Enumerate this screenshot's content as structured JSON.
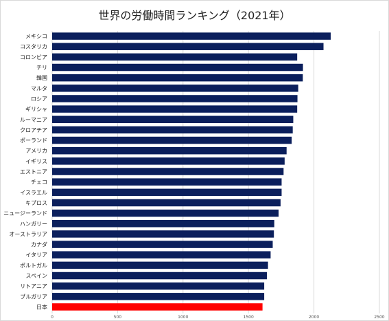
{
  "chart_data": {
    "type": "bar",
    "orientation": "horizontal",
    "title": "世界の労働時間ランキング（2021年）",
    "categories": [
      "メキシコ",
      "コスタリカ",
      "コロンビア",
      "チリ",
      "韓国",
      "マルタ",
      "ロシア",
      "ギリシャ",
      "ルーマニア",
      "クロアチア",
      "ポーランド",
      "アメリカ",
      "イギリス",
      "エストニア",
      "チェコ",
      "イスラエル",
      "キプロス",
      "ニュージーランド",
      "ハンガリー",
      "オーストラリア",
      "カナダ",
      "イタリア",
      "ポルトガル",
      "スペイン",
      "リトアニア",
      "ブルガリア",
      "日本"
    ],
    "values": [
      2128,
      2073,
      1872,
      1916,
      1915,
      1880,
      1874,
      1872,
      1842,
      1838,
      1830,
      1791,
      1776,
      1768,
      1753,
      1753,
      1745,
      1730,
      1697,
      1694,
      1685,
      1669,
      1649,
      1641,
      1620,
      1620,
      1607
    ],
    "xlim": [
      0,
      2500
    ],
    "xticks": [
      0,
      500,
      1000,
      1500,
      2000,
      2500
    ],
    "xticklabels": [
      "0",
      "500",
      "1000",
      "1500",
      "2000",
      "2500"
    ],
    "grid": true,
    "colors": {
      "default": "#0b1f5c",
      "highlight": "#ff0000",
      "highlight_category": "日本",
      "grid": "#d9d9d9"
    }
  }
}
